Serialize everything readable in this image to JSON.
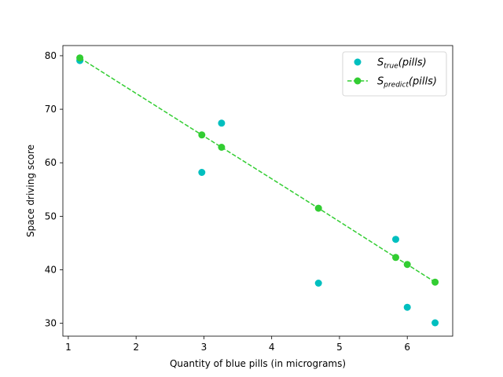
{
  "chart_data": {
    "type": "scatter",
    "title": "",
    "xlabel": "Quantity of blue pills (in micrograms)",
    "ylabel": "Space driving score",
    "xlim": [
      0.92,
      6.67
    ],
    "ylim": [
      27.6,
      81.9
    ],
    "xticks": [
      1,
      2,
      3,
      4,
      5,
      6
    ],
    "yticks": [
      30,
      40,
      50,
      60,
      70,
      80
    ],
    "grid": false,
    "legend_position": "top-right",
    "series": [
      {
        "name": "S_true(pills)",
        "name_base": "S",
        "name_sub": "true",
        "name_arg": "(pills)",
        "style": "markers",
        "color": "#00bfbf",
        "x": [
          1.17,
          2.97,
          3.26,
          4.69,
          5.83,
          6.0,
          6.41
        ],
        "y": [
          79.1,
          58.2,
          67.4,
          37.5,
          45.7,
          33.0,
          30.1
        ]
      },
      {
        "name": "S_predict(pills)",
        "name_base": "S",
        "name_sub": "predict",
        "name_arg": "(pills)",
        "style": "dashed-line-markers",
        "color": "#32cd32",
        "x": [
          1.17,
          2.97,
          3.26,
          4.69,
          5.83,
          6.0,
          6.41
        ],
        "y": [
          79.6,
          65.2,
          62.9,
          51.5,
          42.3,
          41.0,
          37.7
        ]
      }
    ]
  }
}
